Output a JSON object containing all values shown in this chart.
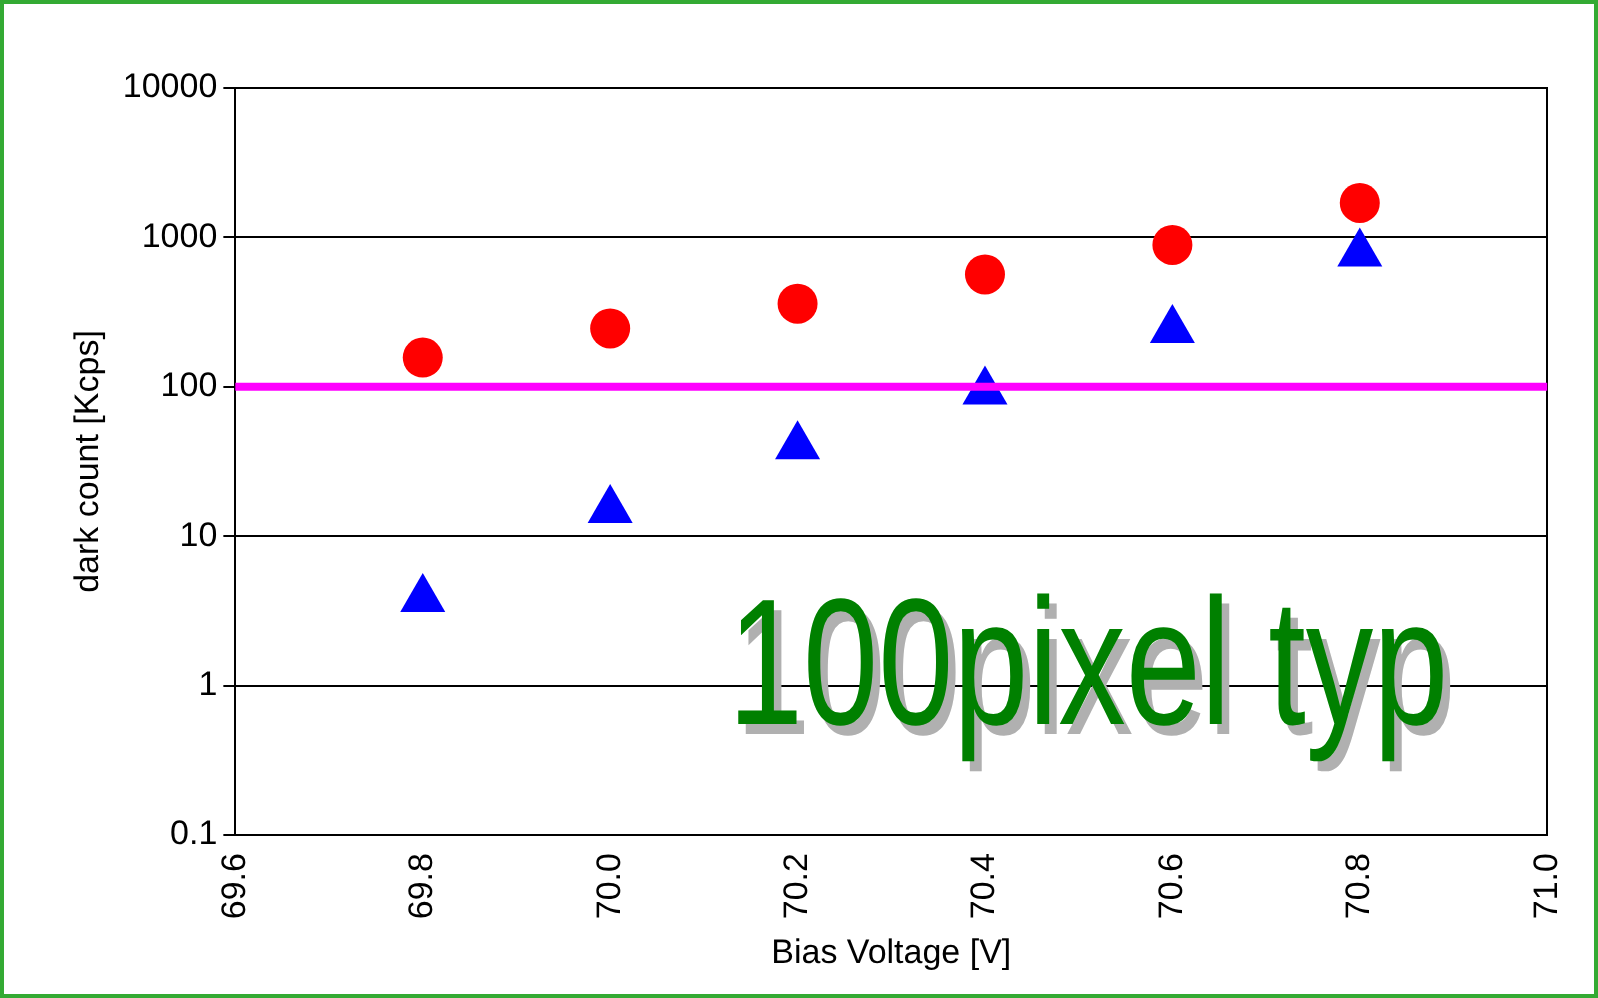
{
  "chart_data": {
    "type": "scatter",
    "xlabel": "Bias Voltage [V]",
    "ylabel": "dark count [Kcps]",
    "log": "y",
    "grid": "y",
    "legend": false,
    "x": [
      69.8,
      70.0,
      70.2,
      70.4,
      70.6,
      70.8
    ],
    "xlim": [
      69.6,
      71.0
    ],
    "xticks": [
      {
        "value": 69.6,
        "label": "69.6"
      },
      {
        "value": 69.8,
        "label": "69.8"
      },
      {
        "value": 70.0,
        "label": "70.0"
      },
      {
        "value": 70.2,
        "label": "70.2"
      },
      {
        "value": 70.4,
        "label": "70.4"
      },
      {
        "value": 70.6,
        "label": "70.6"
      },
      {
        "value": 70.8,
        "label": "70.8"
      },
      {
        "value": 71.0,
        "label": "71.0"
      }
    ],
    "ylim": [
      0.1,
      10000
    ],
    "yticks": [
      0.1,
      1,
      10,
      100,
      1000,
      10000
    ],
    "series": [
      {
        "color": "#ff0000",
        "marker": "circle",
        "values": [
          157,
          246,
          360,
          565,
          890,
          1700
        ]
      },
      {
        "color": "#0000ff",
        "marker": "triangle",
        "values": [
          3.8,
          15,
          40,
          93,
          240,
          780
        ]
      }
    ],
    "ref_lines": [
      {
        "axis": "y",
        "value": 100,
        "color": "#ff00ff"
      }
    ],
    "annotations": [
      "100pixel typ"
    ]
  }
}
